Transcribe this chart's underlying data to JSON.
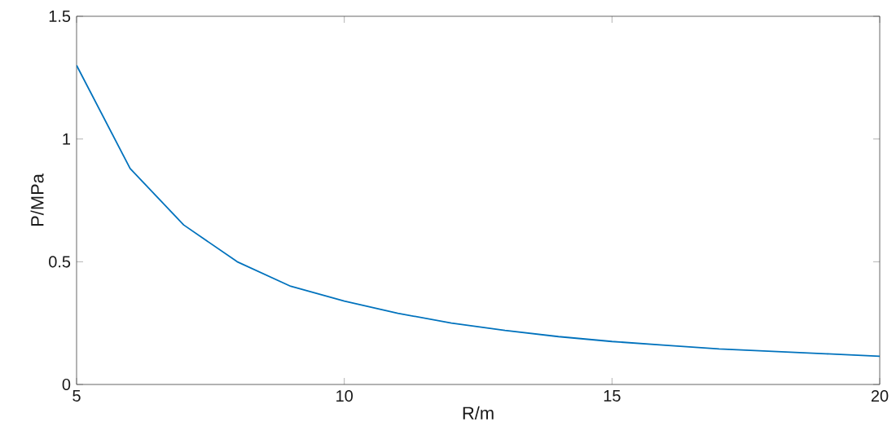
{
  "chart_data": {
    "type": "line",
    "xlabel": "R/m",
    "ylabel": "P/MPa",
    "x": [
      5,
      6,
      7,
      8,
      9,
      10,
      11,
      12,
      13,
      14,
      15,
      16,
      17,
      18,
      19,
      20
    ],
    "series": [
      {
        "color": "#0072bd",
        "values": [
          1.3,
          0.88,
          0.65,
          0.5,
          0.4,
          0.34,
          0.29,
          0.25,
          0.22,
          0.195,
          0.175,
          0.16,
          0.145,
          0.135,
          0.125,
          0.115
        ]
      }
    ],
    "xlim": [
      5,
      20
    ],
    "ylim": [
      0,
      1.5
    ],
    "xticks": [
      5,
      10,
      15,
      20
    ],
    "yticks": [
      0,
      0.5,
      1,
      1.5
    ],
    "marker": "none",
    "line_style": "solid"
  }
}
